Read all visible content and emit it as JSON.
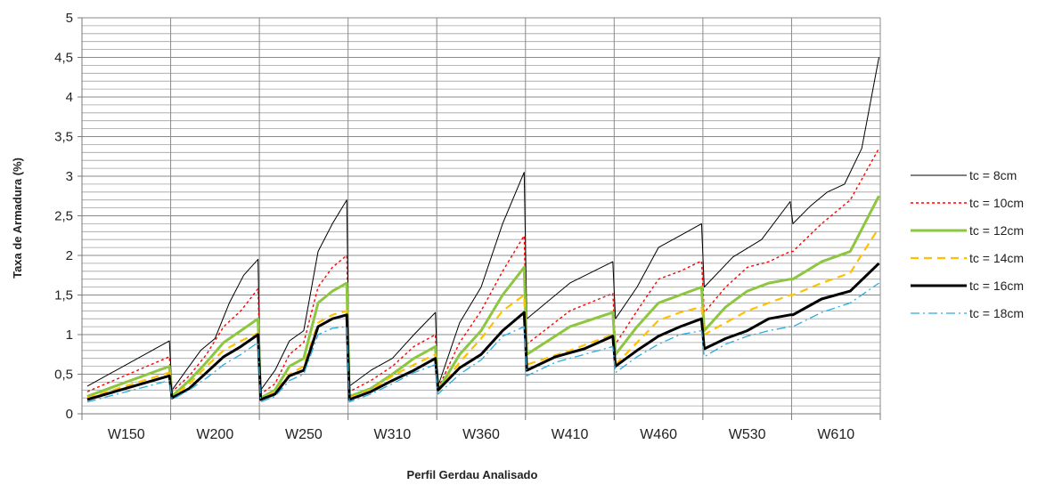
{
  "chart_data": {
    "type": "line",
    "xlabel": "Perfil Gerdau Analisado",
    "ylabel": "Taxa de Armadura (%)",
    "ylim": [
      0,
      5
    ],
    "y_major_ticks": [
      "0",
      "0,5",
      "1",
      "1,5",
      "2",
      "2,5",
      "3",
      "3,5",
      "4",
      "4,5",
      "5"
    ],
    "y_minor_step": 0.1,
    "grid": true,
    "legend_position": "right",
    "groups": [
      "W150",
      "W200",
      "W250",
      "W310",
      "W360",
      "W410",
      "W460",
      "W530",
      "W610"
    ],
    "series": [
      {
        "name": "tc = 8cm",
        "color": "#000000",
        "dash": "",
        "width": 1,
        "segments": [
          [
            0.35,
            0.92
          ],
          [
            0.3,
            0.55,
            0.8,
            0.95,
            1.4,
            1.75,
            1.95
          ],
          [
            0.3,
            0.55,
            0.92,
            1.05,
            2.05,
            2.4,
            2.7
          ],
          [
            0.35,
            0.55,
            0.7,
            1.0,
            1.28
          ],
          [
            0.35,
            1.15,
            1.6,
            2.4,
            3.05
          ],
          [
            1.2,
            1.65,
            1.92
          ],
          [
            1.2,
            1.6,
            2.1,
            2.25,
            2.4
          ],
          [
            1.6,
            1.98,
            2.2,
            2.68
          ],
          [
            2.4,
            2.62,
            2.8,
            2.9,
            3.35,
            4.5
          ]
        ]
      },
      {
        "name": "tc = 10cm",
        "color": "#ff0000",
        "dash": "3,3",
        "width": 1.4,
        "segments": [
          [
            0.28,
            0.72
          ],
          [
            0.28,
            0.48,
            0.75,
            1.1,
            1.3,
            1.58
          ],
          [
            0.25,
            0.38,
            0.75,
            0.9,
            1.6,
            1.85,
            2.0
          ],
          [
            0.28,
            0.42,
            0.6,
            0.85,
            1.0
          ],
          [
            0.32,
            0.9,
            1.3,
            1.8,
            2.25
          ],
          [
            0.88,
            1.3,
            1.52
          ],
          [
            0.88,
            1.3,
            1.7,
            1.8,
            1.93
          ],
          [
            1.28,
            1.6,
            1.85,
            1.92,
            2.05
          ],
          [
            2.05,
            2.4,
            2.7,
            3.35
          ]
        ]
      },
      {
        "name": "tc = 12cm",
        "color": "#8dc63f",
        "dash": "",
        "width": 3,
        "segments": [
          [
            0.22,
            0.6
          ],
          [
            0.22,
            0.42,
            0.65,
            0.9,
            1.05,
            1.2
          ],
          [
            0.2,
            0.3,
            0.6,
            0.7,
            1.4,
            1.55,
            1.65
          ],
          [
            0.22,
            0.32,
            0.5,
            0.7,
            0.85
          ],
          [
            0.3,
            0.75,
            1.05,
            1.5,
            1.85
          ],
          [
            0.75,
            1.1,
            1.28
          ],
          [
            0.75,
            1.1,
            1.4,
            1.5,
            1.6
          ],
          [
            1.05,
            1.35,
            1.55,
            1.65,
            1.7
          ],
          [
            1.7,
            1.92,
            2.05,
            2.75
          ]
        ]
      },
      {
        "name": "tc = 14cm",
        "color": "#ffc000",
        "dash": "9,6",
        "width": 2.2,
        "segments": [
          [
            0.2,
            0.52
          ],
          [
            0.2,
            0.38,
            0.6,
            0.8,
            0.92,
            1.02
          ],
          [
            0.18,
            0.28,
            0.5,
            0.6,
            1.15,
            1.25,
            1.3
          ],
          [
            0.2,
            0.3,
            0.48,
            0.62,
            0.75
          ],
          [
            0.28,
            0.65,
            0.95,
            1.3,
            1.5
          ],
          [
            0.62,
            0.8,
            1.0
          ],
          [
            0.62,
            0.9,
            1.18,
            1.28,
            1.35
          ],
          [
            1.0,
            1.15,
            1.3,
            1.4,
            1.5
          ],
          [
            1.5,
            1.65,
            1.78,
            2.35
          ]
        ]
      },
      {
        "name": "tc = 16cm",
        "color": "#000000",
        "dash": "",
        "width": 3,
        "segments": [
          [
            0.18,
            0.48
          ],
          [
            0.2,
            0.32,
            0.52,
            0.72,
            0.85,
            1.0
          ],
          [
            0.18,
            0.25,
            0.48,
            0.55,
            1.1,
            1.2,
            1.25
          ],
          [
            0.18,
            0.28,
            0.42,
            0.55,
            0.7
          ],
          [
            0.3,
            0.58,
            0.75,
            1.05,
            1.28
          ],
          [
            0.55,
            0.72,
            0.82,
            0.98
          ],
          [
            0.6,
            0.8,
            0.98,
            1.1,
            1.2
          ],
          [
            0.82,
            0.95,
            1.05,
            1.2,
            1.25
          ],
          [
            1.25,
            1.45,
            1.55,
            1.9
          ]
        ]
      },
      {
        "name": "tc = 18cm",
        "color": "#29abe2",
        "dash": "10,4,2,4",
        "width": 1.3,
        "segments": [
          [
            0.15,
            0.42
          ],
          [
            0.18,
            0.3,
            0.45,
            0.62,
            0.75,
            0.9
          ],
          [
            0.15,
            0.22,
            0.42,
            0.5,
            1.0,
            1.08,
            1.1
          ],
          [
            0.15,
            0.25,
            0.38,
            0.52,
            0.62
          ],
          [
            0.25,
            0.5,
            0.68,
            0.98,
            1.1
          ],
          [
            0.48,
            0.65,
            0.75,
            0.85
          ],
          [
            0.52,
            0.72,
            0.88,
            1.0,
            1.05
          ],
          [
            0.72,
            0.88,
            0.98,
            1.05,
            1.1
          ],
          [
            1.1,
            1.28,
            1.4,
            1.65
          ]
        ]
      }
    ]
  }
}
